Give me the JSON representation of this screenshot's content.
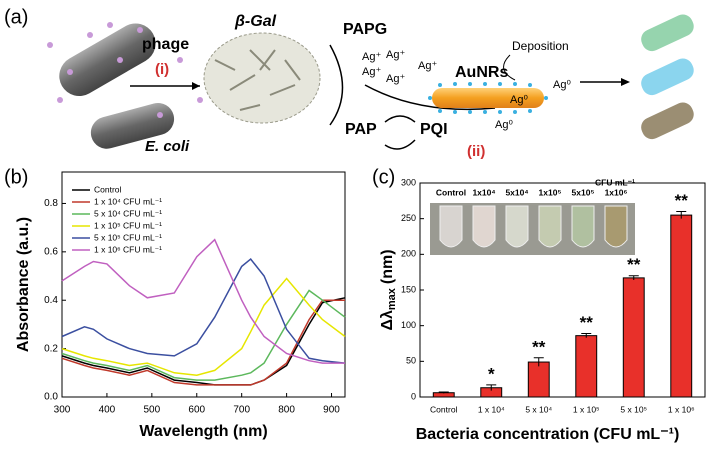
{
  "schematic": {
    "label": "(a)",
    "phage": "phage",
    "step_i": "(i)",
    "ecoli": "E. coli",
    "beta_gal": "β-Gal",
    "papg": "PAPG",
    "pap": "PAP",
    "pqi": "PQI",
    "aunrs": "AuNRs",
    "deposition": "Deposition",
    "ag_plus": [
      "Ag⁺",
      "Ag⁺",
      "Ag⁺",
      "Ag⁺",
      "Ag⁺"
    ],
    "ag_zero": [
      "Ag⁰",
      "Ag⁰",
      "Ag⁰"
    ],
    "step_ii": "(ii)"
  },
  "chart_data": [
    {
      "type": "line",
      "panel": "(b)",
      "x_label": "Wavelength (nm)",
      "y_label": "Absorbance (a.u.)",
      "x": [
        300,
        350,
        370,
        400,
        450,
        490,
        550,
        600,
        640,
        700,
        720,
        750,
        800,
        850,
        880,
        930
      ],
      "series": [
        {
          "name": "Control",
          "color": "#000000",
          "values": [
            0.17,
            0.14,
            0.13,
            0.12,
            0.1,
            0.12,
            0.07,
            0.06,
            0.05,
            0.05,
            0.05,
            0.07,
            0.13,
            0.3,
            0.39,
            0.41
          ]
        },
        {
          "name": "1 x 10⁴ CFU mL⁻¹",
          "color": "#c0392b",
          "values": [
            0.16,
            0.13,
            0.12,
            0.11,
            0.09,
            0.11,
            0.06,
            0.05,
            0.05,
            0.05,
            0.05,
            0.07,
            0.14,
            0.32,
            0.4,
            0.4
          ]
        },
        {
          "name": "5 x 10⁴ CFU mL⁻¹",
          "color": "#5cb85c",
          "values": [
            0.18,
            0.15,
            0.14,
            0.13,
            0.11,
            0.13,
            0.08,
            0.07,
            0.07,
            0.09,
            0.1,
            0.14,
            0.3,
            0.44,
            0.4,
            0.33
          ]
        },
        {
          "name": "1 x 10⁵ CFU mL⁻¹",
          "color": "#e6e600",
          "values": [
            0.2,
            0.17,
            0.16,
            0.15,
            0.13,
            0.14,
            0.1,
            0.09,
            0.11,
            0.2,
            0.27,
            0.38,
            0.49,
            0.38,
            0.32,
            0.25
          ]
        },
        {
          "name": "5 x 10⁵ CFU mL⁻¹",
          "color": "#3b4fa0",
          "values": [
            0.25,
            0.29,
            0.28,
            0.24,
            0.2,
            0.18,
            0.17,
            0.22,
            0.33,
            0.54,
            0.57,
            0.5,
            0.28,
            0.16,
            0.15,
            0.14
          ]
        },
        {
          "name": "1 x 10⁶ CFU mL⁻¹",
          "color": "#c060c0",
          "values": [
            0.48,
            0.54,
            0.56,
            0.55,
            0.46,
            0.41,
            0.43,
            0.58,
            0.65,
            0.4,
            0.33,
            0.25,
            0.18,
            0.15,
            0.14,
            0.14
          ]
        }
      ],
      "xlim": [
        300,
        930
      ],
      "xticks": [
        300,
        400,
        500,
        600,
        700,
        800,
        900
      ],
      "ylim": [
        0,
        0.93
      ],
      "yticks": [
        {
          "value": 0,
          "label": "0.0"
        },
        0.2,
        0.4,
        0.6,
        0.8
      ]
    },
    {
      "type": "bar",
      "panel": "(c)",
      "x_label": "Bacteria concentration (CFU mL⁻¹)",
      "y_label": {
        "symbol": "Δλ",
        "subscript": "max",
        "unit": "(nm)"
      },
      "categories": [
        "Control",
        "1 x 10⁴",
        "5 x 10⁴",
        "1 x 10⁵",
        "5 x 10⁵",
        "1 x 10⁶"
      ],
      "values": [
        6,
        13,
        49,
        86,
        167,
        255
      ],
      "errors": [
        1,
        4,
        6,
        3,
        3,
        5
      ],
      "significance": [
        null,
        "*",
        "**",
        "**",
        "**",
        "**"
      ],
      "color": "#e8302a",
      "ylim": [
        0,
        300
      ],
      "yticks": [
        0,
        50,
        100,
        150,
        200,
        250,
        300
      ],
      "inset_labels": [
        "Control",
        "1x10⁴",
        "5x10⁴",
        "1x10⁵",
        "5x10⁵",
        "1x10⁶"
      ],
      "inset_unit": "CFU mL⁻¹"
    }
  ]
}
